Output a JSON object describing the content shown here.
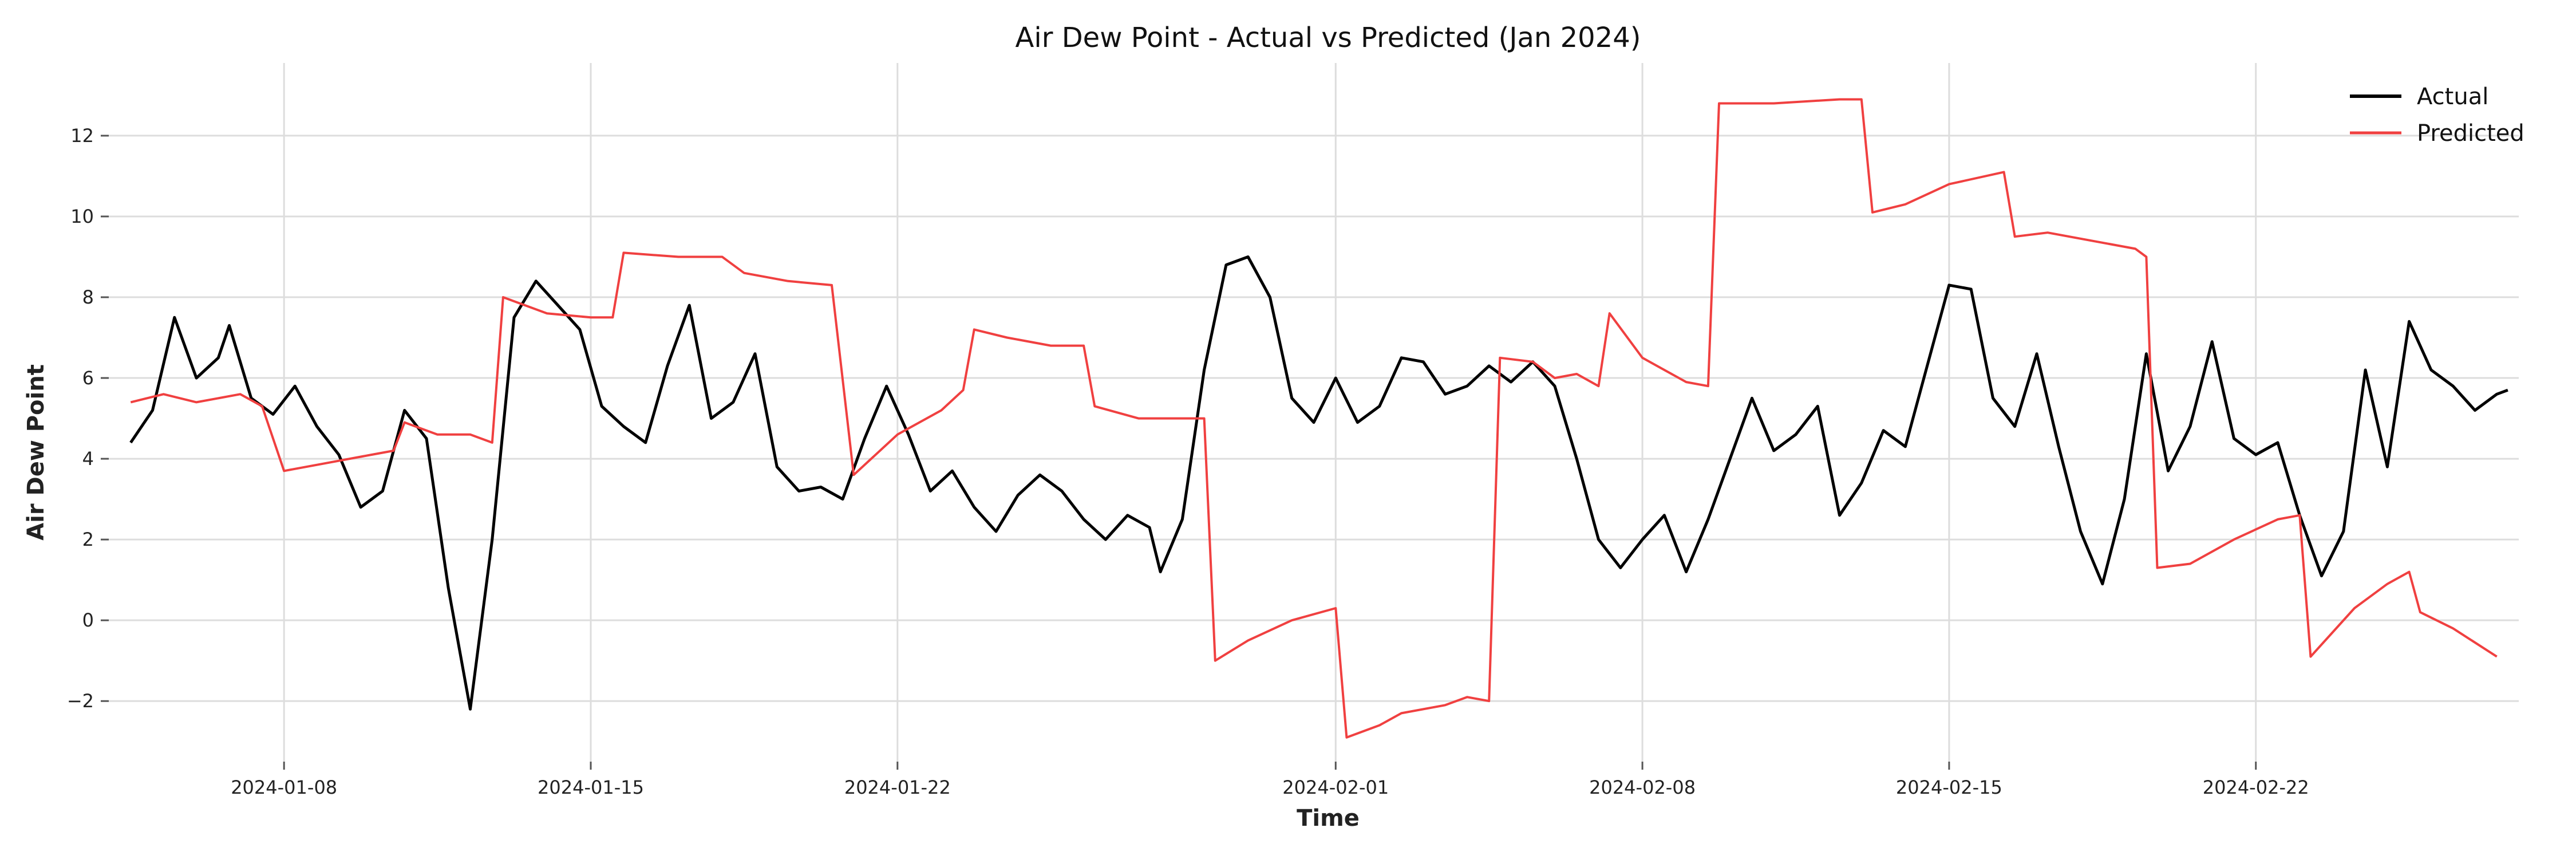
{
  "chart_data": {
    "type": "line",
    "title": "Air Dew Point - Actual vs Predicted (Jan 2024)",
    "xlabel": "Time",
    "ylabel": "Air Dew Point",
    "x_range": [
      "2024-01-04T00:00",
      "2024-02-28T00:00"
    ],
    "ylim": [
      -3.5,
      13.8
    ],
    "x_ticks": [
      "2024-01-08",
      "2024-01-15",
      "2024-01-22",
      "2024-02-01",
      "2024-02-08",
      "2024-02-15",
      "2024-02-22"
    ],
    "y_ticks": [
      -2,
      0,
      2,
      4,
      6,
      8,
      10,
      12
    ],
    "y_tick_labels": [
      "−2",
      "0",
      "2",
      "4",
      "6",
      "8",
      "10",
      "12"
    ],
    "grid": true,
    "legend_position": "top-right",
    "series": [
      {
        "name": "Actual",
        "color": "#000000",
        "points": [
          [
            "2024-01-04T12:00",
            4.4
          ],
          [
            "2024-01-05T00:00",
            5.2
          ],
          [
            "2024-01-05T12:00",
            7.5
          ],
          [
            "2024-01-06T00:00",
            6.0
          ],
          [
            "2024-01-06T12:00",
            6.5
          ],
          [
            "2024-01-06T18:00",
            7.3
          ],
          [
            "2024-01-07T06:00",
            5.5
          ],
          [
            "2024-01-07T18:00",
            5.1
          ],
          [
            "2024-01-08T06:00",
            5.8
          ],
          [
            "2024-01-08T18:00",
            4.8
          ],
          [
            "2024-01-09T06:00",
            4.1
          ],
          [
            "2024-01-09T18:00",
            2.8
          ],
          [
            "2024-01-10T06:00",
            3.2
          ],
          [
            "2024-01-10T18:00",
            5.2
          ],
          [
            "2024-01-11T06:00",
            4.5
          ],
          [
            "2024-01-11T18:00",
            0.8
          ],
          [
            "2024-01-12T06:00",
            -2.2
          ],
          [
            "2024-01-12T18:00",
            2.0
          ],
          [
            "2024-01-13T06:00",
            7.5
          ],
          [
            "2024-01-13T18:00",
            8.4
          ],
          [
            "2024-01-14T06:00",
            7.8
          ],
          [
            "2024-01-14T18:00",
            7.2
          ],
          [
            "2024-01-15T06:00",
            5.3
          ],
          [
            "2024-01-15T18:00",
            4.8
          ],
          [
            "2024-01-16T06:00",
            4.4
          ],
          [
            "2024-01-16T18:00",
            6.3
          ],
          [
            "2024-01-17T06:00",
            7.8
          ],
          [
            "2024-01-17T18:00",
            5.0
          ],
          [
            "2024-01-18T06:00",
            5.4
          ],
          [
            "2024-01-18T18:00",
            6.6
          ],
          [
            "2024-01-19T06:00",
            3.8
          ],
          [
            "2024-01-19T18:00",
            3.2
          ],
          [
            "2024-01-20T06:00",
            3.3
          ],
          [
            "2024-01-20T18:00",
            3.0
          ],
          [
            "2024-01-21T06:00",
            4.5
          ],
          [
            "2024-01-21T18:00",
            5.8
          ],
          [
            "2024-01-22T06:00",
            4.6
          ],
          [
            "2024-01-22T18:00",
            3.2
          ],
          [
            "2024-01-23T06:00",
            3.7
          ],
          [
            "2024-01-23T18:00",
            2.8
          ],
          [
            "2024-01-24T06:00",
            2.2
          ],
          [
            "2024-01-24T18:00",
            3.1
          ],
          [
            "2024-01-25T06:00",
            3.6
          ],
          [
            "2024-01-25T18:00",
            3.2
          ],
          [
            "2024-01-26T06:00",
            2.5
          ],
          [
            "2024-01-26T18:00",
            2.0
          ],
          [
            "2024-01-27T06:00",
            2.6
          ],
          [
            "2024-01-27T18:00",
            2.3
          ],
          [
            "2024-01-28T00:00",
            1.2
          ],
          [
            "2024-01-28T12:00",
            2.5
          ],
          [
            "2024-01-29T00:00",
            6.2
          ],
          [
            "2024-01-29T12:00",
            8.8
          ],
          [
            "2024-01-30T00:00",
            9.0
          ],
          [
            "2024-01-30T12:00",
            8.0
          ],
          [
            "2024-01-31T00:00",
            5.5
          ],
          [
            "2024-01-31T12:00",
            4.9
          ],
          [
            "2024-02-01T00:00",
            6.0
          ],
          [
            "2024-02-01T12:00",
            4.9
          ],
          [
            "2024-02-02T00:00",
            5.3
          ],
          [
            "2024-02-02T12:00",
            6.5
          ],
          [
            "2024-02-03T00:00",
            6.4
          ],
          [
            "2024-02-03T12:00",
            5.6
          ],
          [
            "2024-02-04T00:00",
            5.8
          ],
          [
            "2024-02-04T12:00",
            6.3
          ],
          [
            "2024-02-05T00:00",
            5.9
          ],
          [
            "2024-02-05T12:00",
            6.4
          ],
          [
            "2024-02-06T00:00",
            5.8
          ],
          [
            "2024-02-06T12:00",
            4.0
          ],
          [
            "2024-02-07T00:00",
            2.0
          ],
          [
            "2024-02-07T12:00",
            1.3
          ],
          [
            "2024-02-08T00:00",
            2.0
          ],
          [
            "2024-02-08T12:00",
            2.6
          ],
          [
            "2024-02-09T00:00",
            1.2
          ],
          [
            "2024-02-09T12:00",
            2.5
          ],
          [
            "2024-02-10T00:00",
            4.0
          ],
          [
            "2024-02-10T12:00",
            5.5
          ],
          [
            "2024-02-11T00:00",
            4.2
          ],
          [
            "2024-02-11T12:00",
            4.6
          ],
          [
            "2024-02-12T00:00",
            5.3
          ],
          [
            "2024-02-12T12:00",
            2.6
          ],
          [
            "2024-02-13T00:00",
            3.4
          ],
          [
            "2024-02-13T12:00",
            4.7
          ],
          [
            "2024-02-14T00:00",
            4.3
          ],
          [
            "2024-02-14T12:00",
            6.3
          ],
          [
            "2024-02-15T00:00",
            8.3
          ],
          [
            "2024-02-15T12:00",
            8.2
          ],
          [
            "2024-02-16T00:00",
            5.5
          ],
          [
            "2024-02-16T12:00",
            4.8
          ],
          [
            "2024-02-17T00:00",
            6.6
          ],
          [
            "2024-02-17T12:00",
            4.3
          ],
          [
            "2024-02-18T00:00",
            2.2
          ],
          [
            "2024-02-18T12:00",
            0.9
          ],
          [
            "2024-02-19T00:00",
            3.0
          ],
          [
            "2024-02-19T12:00",
            6.6
          ],
          [
            "2024-02-20T00:00",
            3.7
          ],
          [
            "2024-02-20T12:00",
            4.8
          ],
          [
            "2024-02-21T00:00",
            6.9
          ],
          [
            "2024-02-21T12:00",
            4.5
          ],
          [
            "2024-02-22T00:00",
            4.1
          ],
          [
            "2024-02-22T12:00",
            4.4
          ],
          [
            "2024-02-23T00:00",
            2.6
          ],
          [
            "2024-02-23T12:00",
            1.1
          ],
          [
            "2024-02-24T00:00",
            2.2
          ],
          [
            "2024-02-24T12:00",
            6.2
          ],
          [
            "2024-02-25T00:00",
            3.8
          ],
          [
            "2024-02-25T12:00",
            7.4
          ],
          [
            "2024-02-26T00:00",
            6.2
          ],
          [
            "2024-02-26T12:00",
            5.8
          ],
          [
            "2024-02-27T00:00",
            5.2
          ],
          [
            "2024-02-27T12:00",
            5.6
          ],
          [
            "2024-02-27T18:00",
            5.7
          ]
        ]
      },
      {
        "name": "Predicted",
        "color": "#f04040",
        "points": [
          [
            "2024-01-04T12:00",
            5.4
          ],
          [
            "2024-01-05T06:00",
            5.6
          ],
          [
            "2024-01-06T00:00",
            5.4
          ],
          [
            "2024-01-07T00:00",
            5.6
          ],
          [
            "2024-01-07T12:00",
            5.3
          ],
          [
            "2024-01-08T00:00",
            3.7
          ],
          [
            "2024-01-09T00:00",
            3.9
          ],
          [
            "2024-01-10T00:00",
            4.1
          ],
          [
            "2024-01-10T12:00",
            4.2
          ],
          [
            "2024-01-10T18:00",
            4.9
          ],
          [
            "2024-01-11T12:00",
            4.6
          ],
          [
            "2024-01-12T06:00",
            4.6
          ],
          [
            "2024-01-12T18:00",
            4.4
          ],
          [
            "2024-01-13T00:00",
            8.0
          ],
          [
            "2024-01-14T00:00",
            7.6
          ],
          [
            "2024-01-15T00:00",
            7.5
          ],
          [
            "2024-01-15T12:00",
            7.5
          ],
          [
            "2024-01-15T18:00",
            9.1
          ],
          [
            "2024-01-17T00:00",
            9.0
          ],
          [
            "2024-01-18T00:00",
            9.0
          ],
          [
            "2024-01-18T12:00",
            8.6
          ],
          [
            "2024-01-19T12:00",
            8.4
          ],
          [
            "2024-01-20T12:00",
            8.3
          ],
          [
            "2024-01-21T00:00",
            3.6
          ],
          [
            "2024-01-22T00:00",
            4.6
          ],
          [
            "2024-01-23T00:00",
            5.2
          ],
          [
            "2024-01-23T12:00",
            5.7
          ],
          [
            "2024-01-23T18:00",
            7.2
          ],
          [
            "2024-01-24T12:00",
            7.0
          ],
          [
            "2024-01-25T12:00",
            6.8
          ],
          [
            "2024-01-26T06:00",
            6.8
          ],
          [
            "2024-01-26T12:00",
            5.3
          ],
          [
            "2024-01-27T12:00",
            5.0
          ],
          [
            "2024-01-28T12:00",
            5.0
          ],
          [
            "2024-01-29T00:00",
            5.0
          ],
          [
            "2024-01-29T06:00",
            -1.0
          ],
          [
            "2024-01-30T00:00",
            -0.5
          ],
          [
            "2024-01-31T00:00",
            0.0
          ],
          [
            "2024-02-01T00:00",
            0.3
          ],
          [
            "2024-02-01T06:00",
            -2.9
          ],
          [
            "2024-02-02T00:00",
            -2.6
          ],
          [
            "2024-02-02T12:00",
            -2.3
          ],
          [
            "2024-02-03T12:00",
            -2.1
          ],
          [
            "2024-02-04T00:00",
            -1.9
          ],
          [
            "2024-02-04T12:00",
            -2.0
          ],
          [
            "2024-02-04T18:00",
            6.5
          ],
          [
            "2024-02-05T12:00",
            6.4
          ],
          [
            "2024-02-06T00:00",
            6.0
          ],
          [
            "2024-02-06T12:00",
            6.1
          ],
          [
            "2024-02-07T00:00",
            5.8
          ],
          [
            "2024-02-07T06:00",
            7.6
          ],
          [
            "2024-02-08T00:00",
            6.5
          ],
          [
            "2024-02-08T12:00",
            6.2
          ],
          [
            "2024-02-09T00:00",
            5.9
          ],
          [
            "2024-02-09T12:00",
            5.8
          ],
          [
            "2024-02-09T18:00",
            12.8
          ],
          [
            "2024-02-11T00:00",
            12.8
          ],
          [
            "2024-02-12T12:00",
            12.9
          ],
          [
            "2024-02-13T00:00",
            12.9
          ],
          [
            "2024-02-13T06:00",
            10.1
          ],
          [
            "2024-02-14T00:00",
            10.3
          ],
          [
            "2024-02-15T00:00",
            10.8
          ],
          [
            "2024-02-16T06:00",
            11.1
          ],
          [
            "2024-02-16T12:00",
            9.5
          ],
          [
            "2024-02-17T06:00",
            9.6
          ],
          [
            "2024-02-18T06:00",
            9.4
          ],
          [
            "2024-02-19T06:00",
            9.2
          ],
          [
            "2024-02-19T12:00",
            9.0
          ],
          [
            "2024-02-19T18:00",
            1.3
          ],
          [
            "2024-02-20T12:00",
            1.4
          ],
          [
            "2024-02-21T12:00",
            2.0
          ],
          [
            "2024-02-22T12:00",
            2.5
          ],
          [
            "2024-02-23T00:00",
            2.6
          ],
          [
            "2024-02-23T06:00",
            -0.9
          ],
          [
            "2024-02-24T06:00",
            0.3
          ],
          [
            "2024-02-25T00:00",
            0.9
          ],
          [
            "2024-02-25T12:00",
            1.2
          ],
          [
            "2024-02-25T18:00",
            0.2
          ],
          [
            "2024-02-26T12:00",
            -0.2
          ],
          [
            "2024-02-27T12:00",
            -0.9
          ]
        ]
      }
    ]
  }
}
